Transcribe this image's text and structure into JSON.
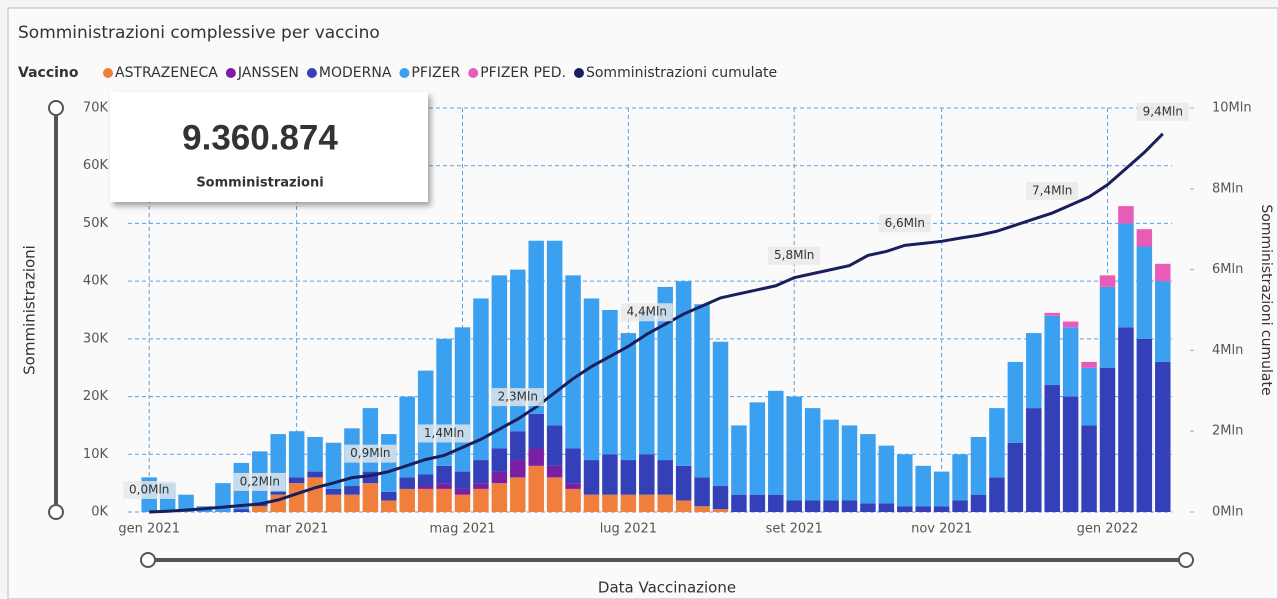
{
  "chart_data": {
    "type": "bar",
    "title": "Somministrazioni complessive per vaccino",
    "legend_title": "Vaccino",
    "kpi": {
      "value": "9.360.874",
      "caption": "Somministrazioni"
    },
    "y_label": "Somministrazioni",
    "y2_label": "Somministrazioni cumulate",
    "x_label": "Data Vaccinazione",
    "categories": [
      "gen 2021",
      null,
      null,
      null,
      null,
      null,
      null,
      null,
      "mar 2021",
      null,
      null,
      null,
      null,
      null,
      null,
      null,
      null,
      "mag 2021",
      null,
      null,
      null,
      null,
      null,
      null,
      null,
      null,
      "lug 2021",
      null,
      null,
      null,
      null,
      null,
      null,
      null,
      null,
      "set 2021",
      null,
      null,
      null,
      null,
      null,
      null,
      null,
      "nov 2021",
      null,
      null,
      null,
      null,
      null,
      null,
      null,
      null,
      "gen 2022",
      null,
      null,
      null
    ],
    "series": [
      {
        "name": "ASTRAZENECA",
        "color": "#f07e3c",
        "values": [
          0,
          0,
          0,
          0,
          0,
          0,
          1000,
          3000,
          5000,
          6000,
          3000,
          3000,
          5000,
          2000,
          4000,
          4000,
          4000,
          3000,
          4000,
          5000,
          6000,
          8000,
          6000,
          4000,
          3000,
          3000,
          3000,
          3000,
          3000,
          2000,
          1000,
          500,
          0,
          0,
          0,
          0,
          0,
          0,
          0,
          0,
          0,
          0,
          0,
          0,
          0,
          0,
          0,
          0,
          0,
          0,
          0,
          0,
          0,
          0,
          0,
          0
        ]
      },
      {
        "name": "JANSSEN",
        "color": "#7b1fa2",
        "values": [
          0,
          0,
          0,
          0,
          0,
          0,
          0,
          0,
          0,
          0,
          0,
          0,
          0,
          0,
          0,
          500,
          1000,
          1000,
          1000,
          2000,
          3000,
          3000,
          2000,
          1000,
          0,
          0,
          0,
          0,
          0,
          0,
          0,
          0,
          0,
          0,
          0,
          0,
          0,
          0,
          0,
          0,
          0,
          0,
          0,
          0,
          0,
          0,
          0,
          0,
          0,
          0,
          0,
          0,
          0,
          0,
          0,
          0
        ]
      },
      {
        "name": "MODERNA",
        "color": "#3440b8",
        "values": [
          0,
          0,
          0,
          0,
          0,
          500,
          500,
          500,
          1000,
          1000,
          1000,
          1500,
          2000,
          1500,
          2000,
          2000,
          3000,
          3000,
          4000,
          4000,
          5000,
          6000,
          7000,
          6000,
          6000,
          7000,
          6000,
          7000,
          6000,
          6000,
          5000,
          4000,
          3000,
          3000,
          3000,
          2000,
          2000,
          2000,
          2000,
          1500,
          1500,
          1000,
          1000,
          1000,
          2000,
          3000,
          6000,
          12000,
          18000,
          22000,
          20000,
          15000,
          25000,
          32000,
          30000,
          26000
        ]
      },
      {
        "name": "PFIZER",
        "color": "#3ba0f0",
        "values": [
          6000,
          5000,
          3000,
          1000,
          5000,
          8000,
          9000,
          10000,
          8000,
          6000,
          8000,
          10000,
          11000,
          10000,
          14000,
          18000,
          22000,
          25000,
          28000,
          30000,
          28000,
          30000,
          32000,
          30000,
          28000,
          25000,
          22000,
          25000,
          30000,
          32000,
          30000,
          25000,
          12000,
          16000,
          18000,
          18000,
          16000,
          14000,
          13000,
          12000,
          10000,
          9000,
          7000,
          6000,
          8000,
          10000,
          12000,
          14000,
          13000,
          12000,
          12000,
          10000,
          14000,
          18000,
          16000,
          14000
        ]
      },
      {
        "name": "PFIZER PED.",
        "color": "#e85cb8",
        "values": [
          0,
          0,
          0,
          0,
          0,
          0,
          0,
          0,
          0,
          0,
          0,
          0,
          0,
          0,
          0,
          0,
          0,
          0,
          0,
          0,
          0,
          0,
          0,
          0,
          0,
          0,
          0,
          0,
          0,
          0,
          0,
          0,
          0,
          0,
          0,
          0,
          0,
          0,
          0,
          0,
          0,
          0,
          0,
          0,
          0,
          0,
          0,
          0,
          0,
          500,
          1000,
          1000,
          2000,
          3000,
          3000,
          3000
        ]
      },
      {
        "name": "Somministrazioni cumulate",
        "color": "#1a1f5c",
        "axis": "y2",
        "type": "line",
        "values": [
          0,
          20000,
          50000,
          80000,
          120000,
          160000,
          200000,
          300000,
          450000,
          600000,
          720000,
          850000,
          900000,
          1000000,
          1150000,
          1300000,
          1400000,
          1600000,
          1800000,
          2050000,
          2300000,
          2600000,
          2950000,
          3300000,
          3600000,
          3850000,
          4100000,
          4400000,
          4650000,
          4900000,
          5100000,
          5300000,
          5400000,
          5500000,
          5600000,
          5800000,
          5900000,
          6000000,
          6100000,
          6350000,
          6450000,
          6600000,
          6650000,
          6700000,
          6780000,
          6850000,
          6950000,
          7100000,
          7250000,
          7400000,
          7600000,
          7800000,
          8100000,
          8500000,
          8900000,
          9360874
        ],
        "value_labels": [
          "0,0Mln",
          null,
          null,
          null,
          null,
          null,
          "0,2Mln",
          null,
          null,
          null,
          null,
          null,
          "0,9Mln",
          null,
          null,
          null,
          "1,4Mln",
          null,
          null,
          null,
          "2,3Mln",
          null,
          null,
          null,
          null,
          null,
          null,
          "4,4Mln",
          null,
          null,
          null,
          null,
          null,
          null,
          null,
          "5,8Mln",
          null,
          null,
          null,
          null,
          null,
          "6,6Mln",
          null,
          null,
          null,
          null,
          null,
          null,
          null,
          "7,4Mln",
          null,
          null,
          null,
          null,
          null,
          "9,4Mln"
        ]
      }
    ],
    "ylim": [
      0,
      70000
    ],
    "yticks": [
      {
        "value": 0,
        "label": "0K"
      },
      {
        "value": 10000,
        "label": "10K"
      },
      {
        "value": 20000,
        "label": "20K"
      },
      {
        "value": 30000,
        "label": "30K"
      },
      {
        "value": 40000,
        "label": "40K"
      },
      {
        "value": 50000,
        "label": "50K"
      },
      {
        "value": 60000,
        "label": "60K"
      },
      {
        "value": 70000,
        "label": "70K"
      }
    ],
    "y2lim": [
      0,
      10000000
    ],
    "y2ticks": [
      {
        "value": 0,
        "label": "0Mln"
      },
      {
        "value": 2000000,
        "label": "2Mln"
      },
      {
        "value": 4000000,
        "label": "4Mln"
      },
      {
        "value": 6000000,
        "label": "6Mln"
      },
      {
        "value": 8000000,
        "label": "8Mln"
      },
      {
        "value": 10000000,
        "label": "10Mln"
      }
    ],
    "stacked": true,
    "grid": true
  }
}
